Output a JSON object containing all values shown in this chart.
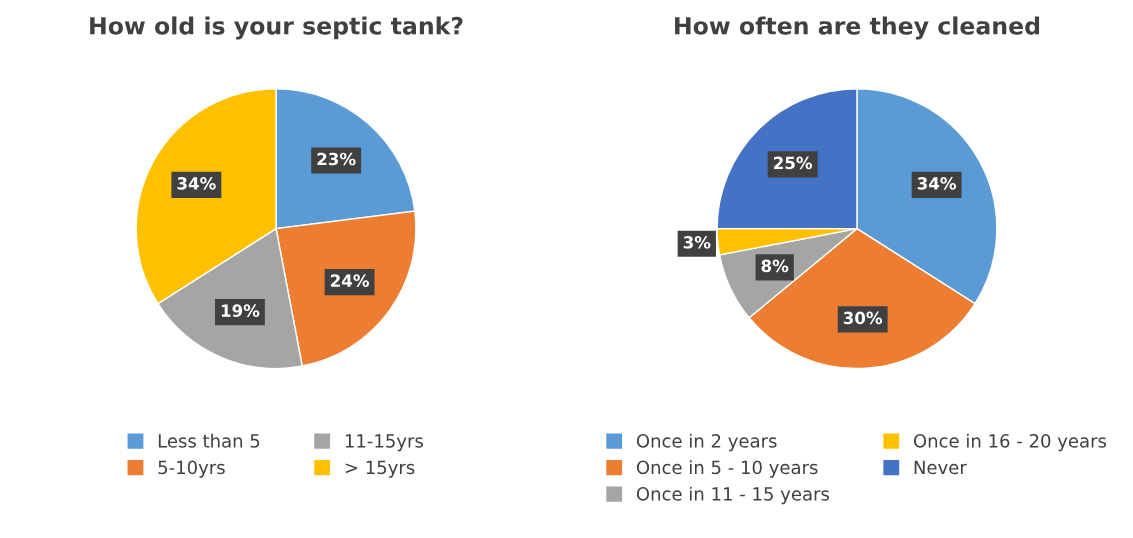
{
  "chart_data": [
    {
      "type": "pie",
      "title": "How old is your septic tank?",
      "categories": [
        "Less than 5",
        "5-10yrs",
        "11-15yrs",
        "> 15yrs"
      ],
      "values": [
        23,
        24,
        19,
        34
      ],
      "colors": [
        "#5b9bd5",
        "#ed7d31",
        "#a5a5a5",
        "#ffc000"
      ],
      "value_labels": [
        "23%",
        "24%",
        "19%",
        "34%"
      ],
      "legend": "bottom"
    },
    {
      "type": "pie",
      "title": "How often are they cleaned",
      "categories": [
        "Once in 2 years",
        "Once in 5 - 10 years",
        "Once in 11 - 15 years",
        "Once in 16 - 20 years",
        "Never"
      ],
      "values": [
        34,
        30,
        8,
        3,
        25
      ],
      "colors": [
        "#5b9bd5",
        "#ed7d31",
        "#a5a5a5",
        "#ffc000",
        "#4472c4"
      ],
      "value_labels": [
        "34%",
        "30%",
        "8%",
        "3%",
        "25%"
      ],
      "legend": "bottom"
    }
  ]
}
